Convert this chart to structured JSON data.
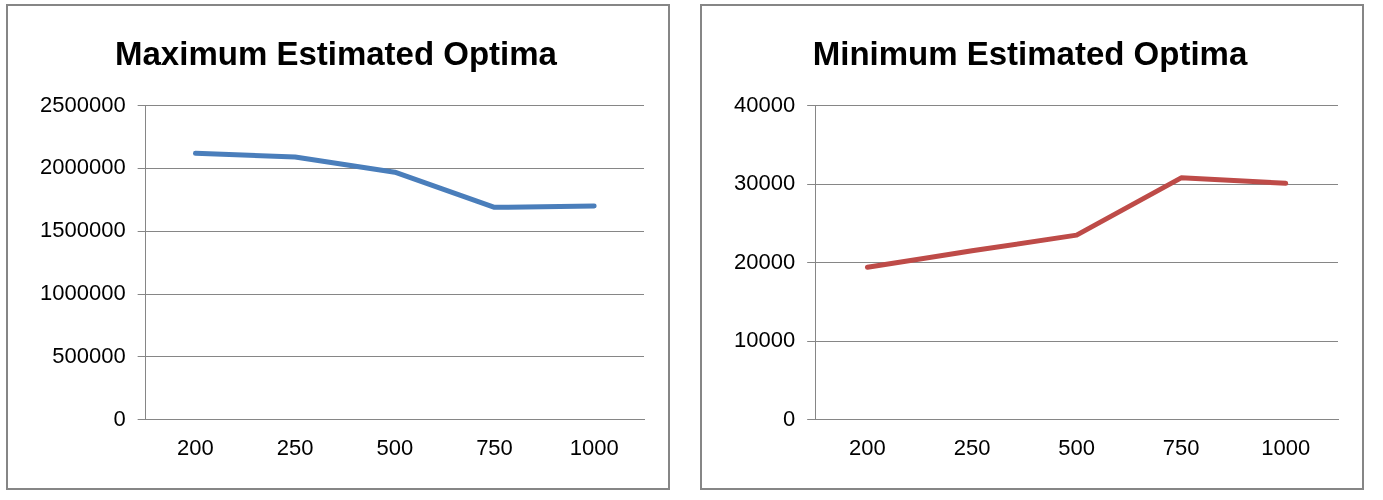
{
  "chart_data": [
    {
      "type": "line",
      "title": "Maximum Estimated Optima",
      "categories": [
        "200",
        "250",
        "500",
        "750",
        "1000"
      ],
      "series": [
        {
          "color": "#4a7ebb",
          "values": [
            2120000,
            2090000,
            1970000,
            1690000,
            1700000
          ]
        }
      ],
      "ylim": [
        0,
        2500000
      ],
      "yticks": [
        0,
        500000,
        1000000,
        1500000,
        2000000,
        2500000
      ],
      "grid": "y",
      "legend": false,
      "marker": "none"
    },
    {
      "type": "line",
      "title": "Minimum Estimated Optima",
      "categories": [
        "200",
        "250",
        "500",
        "750",
        "1000"
      ],
      "series": [
        {
          "color": "#be4b48",
          "values": [
            19400,
            21500,
            23500,
            30800,
            30100
          ]
        }
      ],
      "ylim": [
        0,
        40000
      ],
      "yticks": [
        0,
        10000,
        20000,
        30000,
        40000
      ],
      "grid": "y",
      "legend": false,
      "marker": "none"
    }
  ]
}
